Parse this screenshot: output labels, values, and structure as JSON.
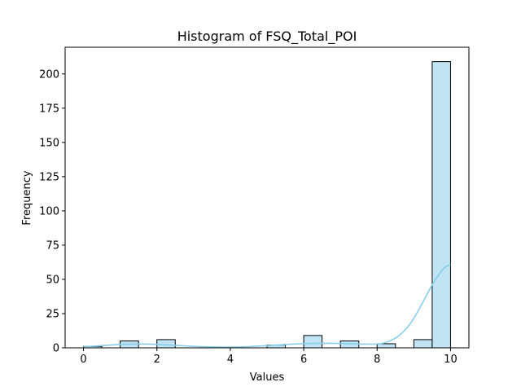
{
  "chart_data": {
    "type": "bar",
    "title": "Histogram of FSQ_Total_POI",
    "xlabel": "Values",
    "ylabel": "Frequency",
    "xlim": [
      -0.5,
      10.5
    ],
    "ylim": [
      0,
      219.5
    ],
    "xticks": [
      0,
      2,
      4,
      6,
      8,
      10
    ],
    "yticks": [
      0,
      25,
      50,
      75,
      100,
      125,
      150,
      175,
      200
    ],
    "bin_edges": [
      0,
      0.5,
      1,
      1.5,
      2,
      2.5,
      3,
      3.5,
      4,
      4.5,
      5,
      5.5,
      6,
      6.5,
      7,
      7.5,
      8,
      8.5,
      9,
      9.5,
      10
    ],
    "values": [
      1,
      0,
      5,
      0,
      6,
      0,
      0,
      0,
      0,
      0,
      2,
      0,
      9,
      0,
      5,
      0,
      3,
      0,
      6,
      209
    ],
    "kde": {
      "x": [
        0,
        0.5,
        1,
        1.5,
        2,
        2.5,
        3,
        3.5,
        4,
        4.5,
        5,
        5.5,
        6,
        6.5,
        7,
        7.5,
        8,
        8.3,
        8.6,
        8.9,
        9.2,
        9.5,
        9.8,
        10
      ],
      "y": [
        0.8,
        1.6,
        2.5,
        2.8,
        2.5,
        1.8,
        1.1,
        0.7,
        0.6,
        0.9,
        1.6,
        2.4,
        3.0,
        3.3,
        3.2,
        2.8,
        2.8,
        4.5,
        9.0,
        17.5,
        31.0,
        46.0,
        57.5,
        61.0
      ]
    },
    "colors": {
      "bar_fill": "#c1e4f4",
      "bar_edge": "#000000",
      "kde_line": "#87ceeb"
    },
    "grid": false,
    "legend": "none"
  }
}
